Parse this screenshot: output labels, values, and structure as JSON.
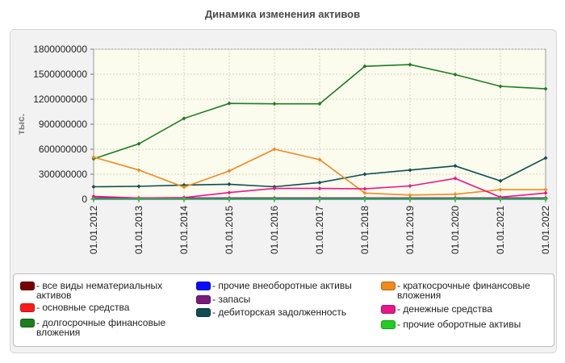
{
  "chart_data": {
    "type": "line",
    "title": "Динамика изменения активов",
    "ylabel": "тыс.",
    "xlabel": "",
    "ylim": [
      0,
      1800000000
    ],
    "yticks": [
      0,
      300000000,
      600000000,
      900000000,
      1200000000,
      1500000000,
      1800000000
    ],
    "x": [
      "01.01.2012",
      "01.01.2013",
      "01.01.2014",
      "01.01.2015",
      "01.01.2016",
      "01.01.2017",
      "01.01.2018",
      "01.01.2019",
      "01.01.2020",
      "01.01.2021",
      "01.01.2022"
    ],
    "grid": true,
    "legend_position": "bottom",
    "series": [
      {
        "name": "- все виды нематериальных активов",
        "color": "#7a0000",
        "values": [
          5000000,
          5000000,
          5000000,
          5000000,
          5000000,
          5000000,
          5000000,
          5000000,
          5000000,
          5000000,
          5000000
        ]
      },
      {
        "name": "- основные средства",
        "color": "#ff1a1a",
        "values": [
          10000000,
          10000000,
          10000000,
          10000000,
          10000000,
          10000000,
          10000000,
          10000000,
          10000000,
          10000000,
          10000000
        ]
      },
      {
        "name": "- долгосрочные финансовые вложения",
        "color": "#1e7d1e",
        "values": [
          485000000,
          665000000,
          970000000,
          1150000000,
          1145000000,
          1145000000,
          1595000000,
          1615000000,
          1495000000,
          1355000000,
          1325000000
        ]
      },
      {
        "name": "- прочие внеоборотные активы",
        "color": "#0a0aff",
        "values": [
          2000000,
          2000000,
          2000000,
          2000000,
          2000000,
          2000000,
          2000000,
          2000000,
          2000000,
          2000000,
          2000000
        ]
      },
      {
        "name": "- запасы",
        "color": "#7b1a7b",
        "values": [
          15000000,
          15000000,
          15000000,
          15000000,
          15000000,
          15000000,
          15000000,
          15000000,
          15000000,
          15000000,
          15000000
        ]
      },
      {
        "name": "- дебиторская задолженность",
        "color": "#0f4d52",
        "values": [
          150000000,
          155000000,
          170000000,
          180000000,
          150000000,
          200000000,
          300000000,
          350000000,
          400000000,
          220000000,
          495000000
        ]
      },
      {
        "name": "- краткосрочные финансовые вложения",
        "color": "#f08a1c",
        "values": [
          505000000,
          350000000,
          145000000,
          340000000,
          600000000,
          475000000,
          75000000,
          50000000,
          60000000,
          115000000,
          115000000
        ]
      },
      {
        "name": "- денежные средства",
        "color": "#e8178a",
        "values": [
          35000000,
          15000000,
          20000000,
          80000000,
          130000000,
          130000000,
          125000000,
          160000000,
          250000000,
          25000000,
          75000000
        ]
      },
      {
        "name": "- прочие оборотные активы",
        "color": "#22cc22",
        "values": [
          5000000,
          5000000,
          5000000,
          5000000,
          5000000,
          5000000,
          5000000,
          5000000,
          5000000,
          5000000,
          5000000
        ]
      }
    ]
  }
}
